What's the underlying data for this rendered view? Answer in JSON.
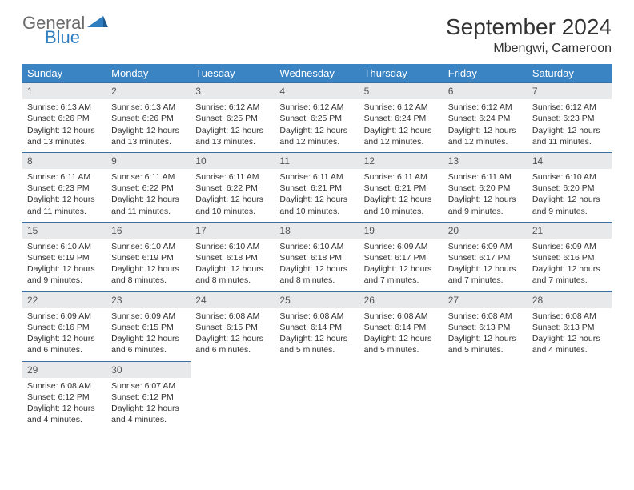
{
  "logo": {
    "general": "General",
    "blue": "Blue"
  },
  "title": "September 2024",
  "subtitle": "Mbengwi, Cameroon",
  "colors": {
    "header_bg": "#3b84c4",
    "header_text": "#ffffff",
    "daynum_bg": "#e8e9ea",
    "daynum_border": "#3b6fa0",
    "logo_gray": "#6b6b6b",
    "logo_blue": "#2f7ec0"
  },
  "weekdays": [
    "Sunday",
    "Monday",
    "Tuesday",
    "Wednesday",
    "Thursday",
    "Friday",
    "Saturday"
  ],
  "weeks": [
    [
      {
        "n": "1",
        "rise": "6:13 AM",
        "set": "6:26 PM",
        "dl": "12 hours and 13 minutes."
      },
      {
        "n": "2",
        "rise": "6:13 AM",
        "set": "6:26 PM",
        "dl": "12 hours and 13 minutes."
      },
      {
        "n": "3",
        "rise": "6:12 AM",
        "set": "6:25 PM",
        "dl": "12 hours and 13 minutes."
      },
      {
        "n": "4",
        "rise": "6:12 AM",
        "set": "6:25 PM",
        "dl": "12 hours and 12 minutes."
      },
      {
        "n": "5",
        "rise": "6:12 AM",
        "set": "6:24 PM",
        "dl": "12 hours and 12 minutes."
      },
      {
        "n": "6",
        "rise": "6:12 AM",
        "set": "6:24 PM",
        "dl": "12 hours and 12 minutes."
      },
      {
        "n": "7",
        "rise": "6:12 AM",
        "set": "6:23 PM",
        "dl": "12 hours and 11 minutes."
      }
    ],
    [
      {
        "n": "8",
        "rise": "6:11 AM",
        "set": "6:23 PM",
        "dl": "12 hours and 11 minutes."
      },
      {
        "n": "9",
        "rise": "6:11 AM",
        "set": "6:22 PM",
        "dl": "12 hours and 11 minutes."
      },
      {
        "n": "10",
        "rise": "6:11 AM",
        "set": "6:22 PM",
        "dl": "12 hours and 10 minutes."
      },
      {
        "n": "11",
        "rise": "6:11 AM",
        "set": "6:21 PM",
        "dl": "12 hours and 10 minutes."
      },
      {
        "n": "12",
        "rise": "6:11 AM",
        "set": "6:21 PM",
        "dl": "12 hours and 10 minutes."
      },
      {
        "n": "13",
        "rise": "6:11 AM",
        "set": "6:20 PM",
        "dl": "12 hours and 9 minutes."
      },
      {
        "n": "14",
        "rise": "6:10 AM",
        "set": "6:20 PM",
        "dl": "12 hours and 9 minutes."
      }
    ],
    [
      {
        "n": "15",
        "rise": "6:10 AM",
        "set": "6:19 PM",
        "dl": "12 hours and 9 minutes."
      },
      {
        "n": "16",
        "rise": "6:10 AM",
        "set": "6:19 PM",
        "dl": "12 hours and 8 minutes."
      },
      {
        "n": "17",
        "rise": "6:10 AM",
        "set": "6:18 PM",
        "dl": "12 hours and 8 minutes."
      },
      {
        "n": "18",
        "rise": "6:10 AM",
        "set": "6:18 PM",
        "dl": "12 hours and 8 minutes."
      },
      {
        "n": "19",
        "rise": "6:09 AM",
        "set": "6:17 PM",
        "dl": "12 hours and 7 minutes."
      },
      {
        "n": "20",
        "rise": "6:09 AM",
        "set": "6:17 PM",
        "dl": "12 hours and 7 minutes."
      },
      {
        "n": "21",
        "rise": "6:09 AM",
        "set": "6:16 PM",
        "dl": "12 hours and 7 minutes."
      }
    ],
    [
      {
        "n": "22",
        "rise": "6:09 AM",
        "set": "6:16 PM",
        "dl": "12 hours and 6 minutes."
      },
      {
        "n": "23",
        "rise": "6:09 AM",
        "set": "6:15 PM",
        "dl": "12 hours and 6 minutes."
      },
      {
        "n": "24",
        "rise": "6:08 AM",
        "set": "6:15 PM",
        "dl": "12 hours and 6 minutes."
      },
      {
        "n": "25",
        "rise": "6:08 AM",
        "set": "6:14 PM",
        "dl": "12 hours and 5 minutes."
      },
      {
        "n": "26",
        "rise": "6:08 AM",
        "set": "6:14 PM",
        "dl": "12 hours and 5 minutes."
      },
      {
        "n": "27",
        "rise": "6:08 AM",
        "set": "6:13 PM",
        "dl": "12 hours and 5 minutes."
      },
      {
        "n": "28",
        "rise": "6:08 AM",
        "set": "6:13 PM",
        "dl": "12 hours and 4 minutes."
      }
    ],
    [
      {
        "n": "29",
        "rise": "6:08 AM",
        "set": "6:12 PM",
        "dl": "12 hours and 4 minutes."
      },
      {
        "n": "30",
        "rise": "6:07 AM",
        "set": "6:12 PM",
        "dl": "12 hours and 4 minutes."
      },
      null,
      null,
      null,
      null,
      null
    ]
  ],
  "labels": {
    "sunrise": "Sunrise:",
    "sunset": "Sunset:",
    "daylight": "Daylight:"
  }
}
